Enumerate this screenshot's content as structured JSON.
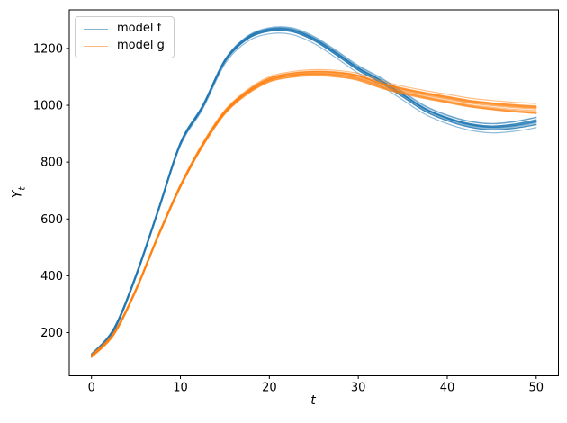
{
  "figure": {
    "xlabel": "t",
    "ylabel_base": "Y",
    "ylabel_sub": "t"
  },
  "chart_data": {
    "type": "line",
    "title": "",
    "xlabel": "t",
    "ylabel": "Y_t",
    "grid": false,
    "legend_position": "upper left",
    "xlim": [
      -2.5,
      52.5
    ],
    "ylim": [
      48,
      1336
    ],
    "xticks": [
      0,
      10,
      20,
      30,
      40,
      50
    ],
    "yticks": [
      200,
      400,
      600,
      800,
      1000,
      1200
    ],
    "x": [
      0,
      2.5,
      5,
      7.5,
      10,
      12.5,
      15,
      17.5,
      20,
      22.5,
      25,
      27.5,
      30,
      32.5,
      35,
      37.5,
      40,
      42.5,
      45,
      47.5,
      50
    ],
    "series": [
      {
        "name": "model f",
        "color": "#1f77b4",
        "values": [
          120,
          210,
          400,
          630,
          865,
          995,
          1155,
          1235,
          1264,
          1263,
          1232,
          1182,
          1128,
          1085,
          1035,
          985,
          952,
          930,
          921,
          927,
          941
        ]
      },
      {
        "name": "model g",
        "color": "#ff7f0e",
        "values": [
          117,
          195,
          350,
          540,
          715,
          860,
          975,
          1045,
          1090,
          1107,
          1113,
          1110,
          1098,
          1072,
          1052,
          1036,
          1022,
          1008,
          999,
          992,
          987
        ]
      }
    ],
    "ensemble": {
      "members_per_series": 15,
      "line_alpha": 0.5,
      "line_width": 1.2,
      "spread_fraction_max": 0.016,
      "note": "each model drawn as a bundle of stochastic trajectories"
    }
  }
}
